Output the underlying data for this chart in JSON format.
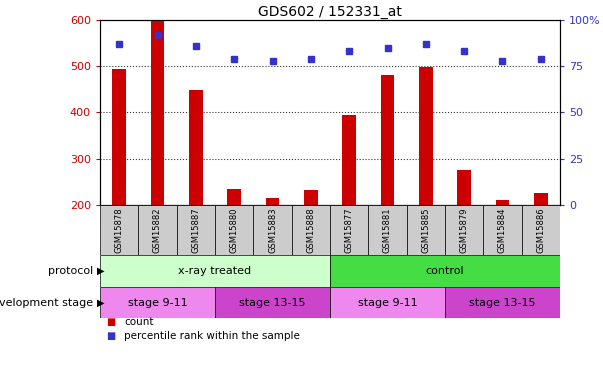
{
  "title": "GDS602 / 152331_at",
  "samples": [
    "GSM15878",
    "GSM15882",
    "GSM15887",
    "GSM15880",
    "GSM15883",
    "GSM15888",
    "GSM15877",
    "GSM15881",
    "GSM15885",
    "GSM15879",
    "GSM15884",
    "GSM15886"
  ],
  "counts": [
    493,
    597,
    449,
    234,
    216,
    232,
    395,
    482,
    499,
    276,
    210,
    225
  ],
  "percentile_ranks": [
    87,
    92,
    86,
    79,
    78,
    79,
    83,
    85,
    87,
    83,
    78,
    79
  ],
  "ylim_left": [
    200,
    600
  ],
  "ylim_right": [
    0,
    100
  ],
  "yticks_left": [
    200,
    300,
    400,
    500,
    600
  ],
  "yticks_right": [
    0,
    25,
    50,
    75,
    100
  ],
  "bar_color": "#cc0000",
  "dot_color": "#3333cc",
  "grid_color": "#000000",
  "protocol_label": "protocol",
  "dev_stage_label": "development stage",
  "protocol_groups": [
    {
      "label": "x-ray treated",
      "start": 0,
      "end": 6,
      "color": "#ccffcc"
    },
    {
      "label": "control",
      "start": 6,
      "end": 12,
      "color": "#44dd44"
    }
  ],
  "dev_stage_groups": [
    {
      "label": "stage 9-11",
      "start": 0,
      "end": 3,
      "color": "#ee88ee"
    },
    {
      "label": "stage 13-15",
      "start": 3,
      "end": 6,
      "color": "#cc44cc"
    },
    {
      "label": "stage 9-11",
      "start": 6,
      "end": 9,
      "color": "#ee88ee"
    },
    {
      "label": "stage 13-15",
      "start": 9,
      "end": 12,
      "color": "#cc44cc"
    }
  ],
  "legend_count_color": "#cc0000",
  "legend_pct_color": "#3333cc",
  "axis_color_left": "#cc0000",
  "axis_color_right": "#3333cc",
  "tick_label_bg": "#cccccc",
  "bar_baseline": 200,
  "bar_width": 0.35
}
